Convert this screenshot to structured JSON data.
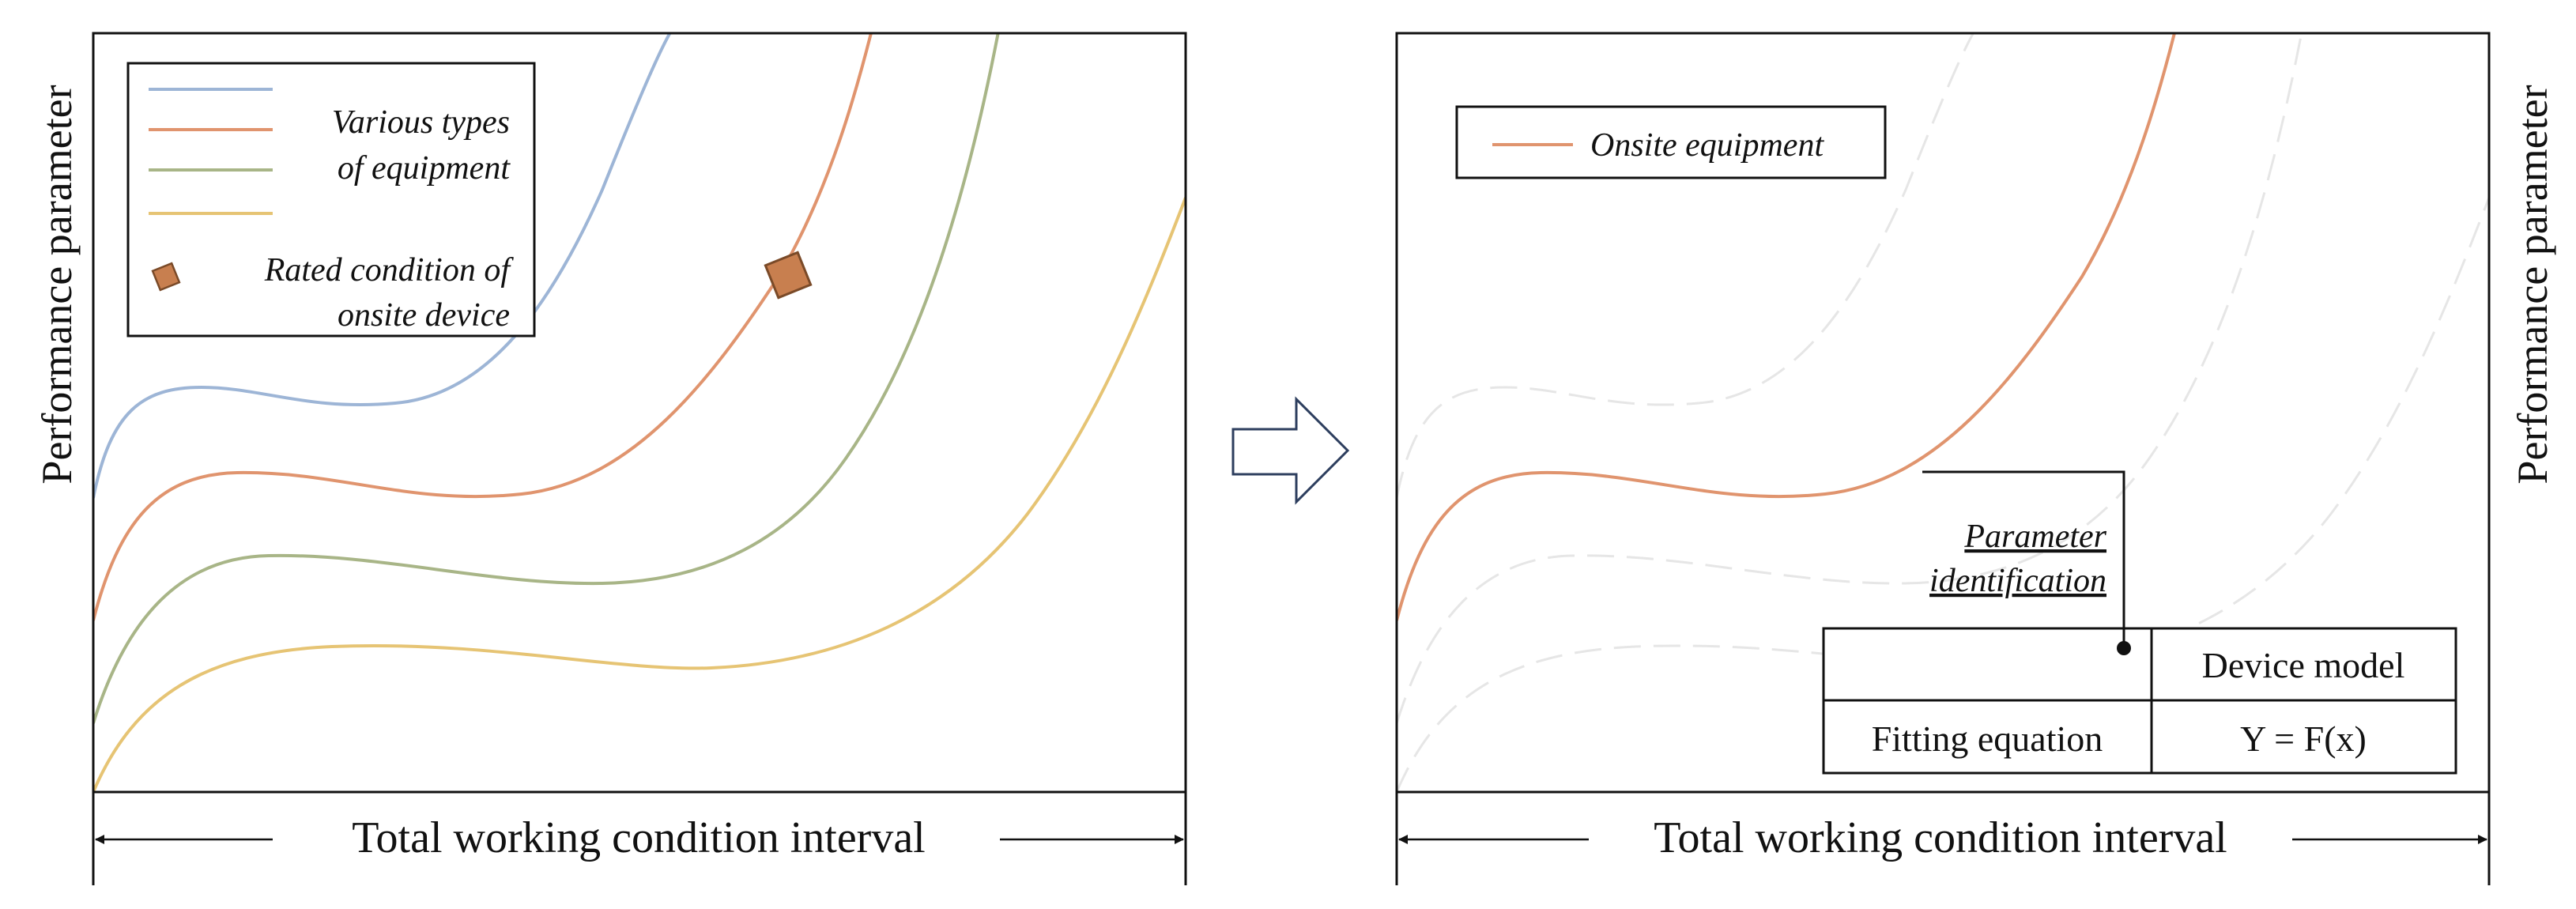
{
  "left_panel": {
    "y_axis_label": "Performance parameter",
    "x_interval_label": "Total working condition interval",
    "legend": {
      "series_line1": "Various types",
      "series_line2": "of equipment",
      "rated_line1": "Rated condition of",
      "rated_line2": "onsite device"
    },
    "curve_colors": [
      "#9db5d6",
      "#e0946e",
      "#a8b587",
      "#e6c474"
    ],
    "marker_color": "#c87f4f"
  },
  "arrow": {
    "icon": "hollow-right-arrow",
    "stroke": "#2d3e5e"
  },
  "right_panel": {
    "y_axis_label": "Performance parameter",
    "x_interval_label": "Total working condition interval",
    "legend": {
      "onsite_label": "Onsite equipment"
    },
    "onsite_color": "#e0946e",
    "ghost_color": "#e6e6e6",
    "annotation_line1": "Parameter",
    "annotation_line2": "identification",
    "table": {
      "header": "Device model",
      "row_label": "Fitting equation",
      "row_value": "Y = F(x)"
    }
  }
}
